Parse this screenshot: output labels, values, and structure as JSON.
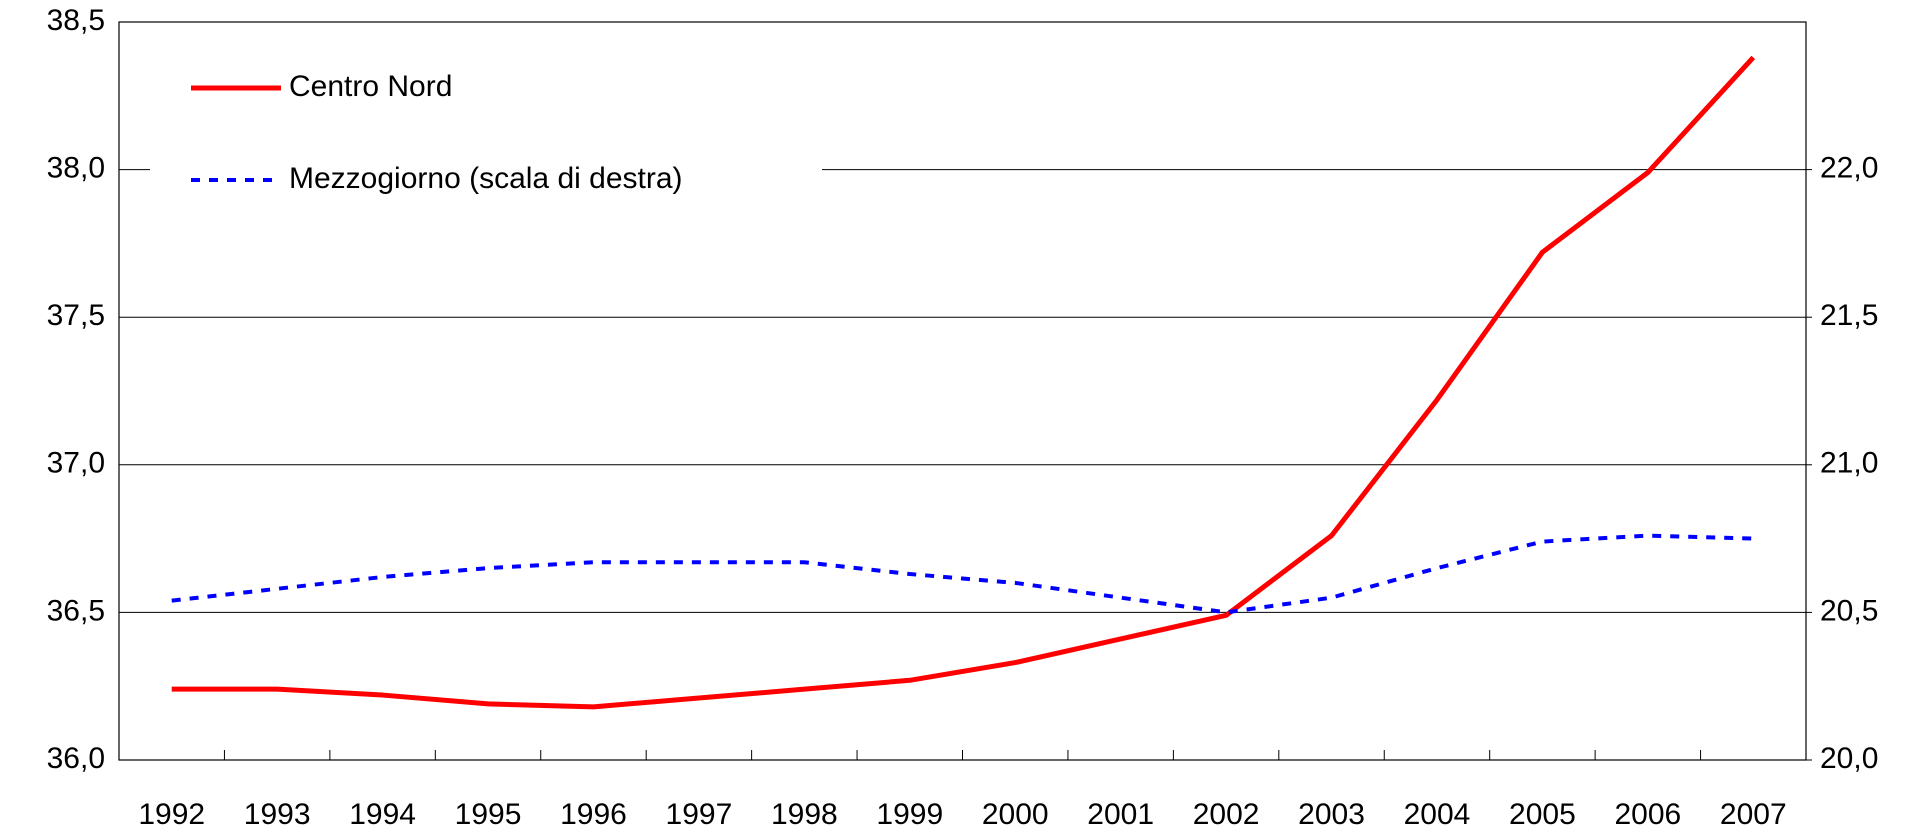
{
  "chart_data": {
    "type": "line",
    "categories": [
      "1992",
      "1993",
      "1994",
      "1995",
      "1996",
      "1997",
      "1998",
      "1999",
      "2000",
      "2001",
      "2002",
      "2003",
      "2004",
      "2005",
      "2006",
      "2007"
    ],
    "series": [
      {
        "name": "Centro Nord",
        "color": "#ff0000",
        "values": [
          36.24,
          36.24,
          36.22,
          36.19,
          36.18,
          36.21,
          36.24,
          36.27,
          36.33,
          36.41,
          36.49,
          36.76,
          37.22,
          37.72,
          37.99,
          38.38
        ]
      },
      {
        "name": "Mezzogiorno (scala di destra)",
        "color": "#0000ff",
        "axis": "y2",
        "values": [
          20.54,
          20.58,
          20.62,
          20.65,
          20.67,
          20.67,
          20.67,
          20.63,
          20.6,
          20.55,
          20.5,
          20.55,
          20.65,
          20.74,
          20.76,
          20.75
        ]
      }
    ],
    "ylim": [
      36.0,
      38.5
    ],
    "yticks": [
      {
        "value": 36.0,
        "label": "36,0"
      },
      {
        "value": 36.5,
        "label": "36,5"
      },
      {
        "value": 37.0,
        "label": "37,0"
      },
      {
        "value": 37.5,
        "label": "37,5"
      },
      {
        "value": 38.0,
        "label": "38,0"
      },
      {
        "value": 38.5,
        "label": "38,5"
      }
    ],
    "y2lim": [
      20.0,
      22.5
    ],
    "y2ticks": [
      {
        "value": 20.0,
        "label": "20,0"
      },
      {
        "value": 20.5,
        "label": "20,5"
      },
      {
        "value": 21.0,
        "label": "21,0"
      },
      {
        "value": 21.5,
        "label": "21,5"
      },
      {
        "value": 22.0,
        "label": "22,0"
      }
    ],
    "grid": true,
    "legend": "upper left"
  }
}
